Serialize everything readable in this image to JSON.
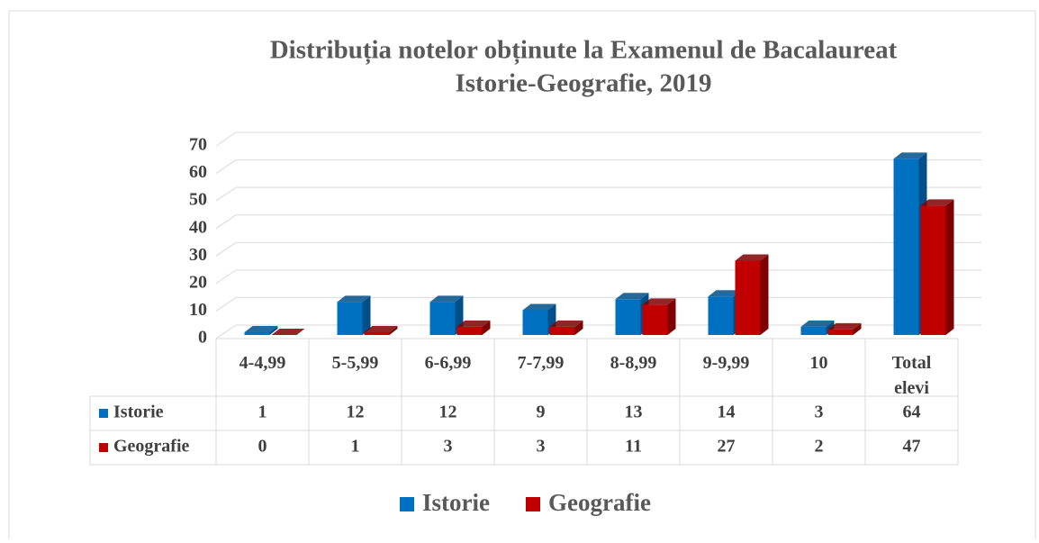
{
  "chart_data": {
    "type": "bar3d",
    "title": "Distribuția notelor obținute la Examenul de Bacalaureat",
    "subtitle": "Istorie-Geografie, 2019",
    "categories": [
      "4-4,99",
      "5-5,99",
      "6-6,99",
      "7-7,99",
      "8-8,99",
      "9-9,99",
      "10",
      "Total elevi"
    ],
    "series": [
      {
        "name": "Istorie",
        "color": "#0070c0",
        "side": "#004f8a",
        "values": [
          1,
          12,
          12,
          9,
          13,
          14,
          3,
          64
        ]
      },
      {
        "name": "Geografie",
        "color": "#c00000",
        "side": "#7f0000",
        "values": [
          0,
          1,
          3,
          3,
          11,
          27,
          2,
          47
        ]
      }
    ],
    "ylim": [
      0,
      70
    ],
    "yticks": [
      0,
      10,
      20,
      30,
      40,
      50,
      60,
      70
    ],
    "grid": true,
    "legend": "bottom"
  }
}
